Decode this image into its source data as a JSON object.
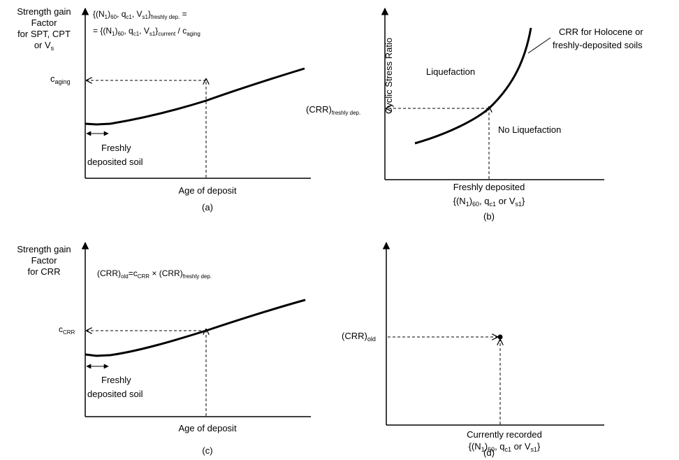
{
  "panel_a": {
    "ylabel": [
      "Strength gain",
      "Factor",
      "for SPT, CPT",
      "or V"
    ],
    "ylabel_sub": "s",
    "eq1": {
      "a": "{(N",
      "b": "1",
      "c": ")",
      "d": "60",
      "e": ", q",
      "f": "c1",
      "g": ", V",
      "h": "s1",
      "i": "}",
      "j": "freshly dep.",
      "k": " ="
    },
    "eq2": {
      "a": "= {(N",
      "b": "1",
      "c": ")",
      "d": "60",
      "e": ", q",
      "f": "c1",
      "g": ", V",
      "h": "s1",
      "i": "}",
      "j": "current",
      "k": " / c",
      "l": "aging"
    },
    "ytick": {
      "main": "c",
      "sub": "aging"
    },
    "annot": [
      "Freshly",
      "deposited soil"
    ],
    "xlabel": "Age of deposit",
    "caption": "(a)"
  },
  "panel_b": {
    "ylabel": "Cyclic Stress Ratio",
    "region_above": "Liquefaction",
    "region_below": "No Liquefaction",
    "curve_label": [
      "CRR for Holocene or",
      "freshly-deposited soils"
    ],
    "ytick": {
      "main": "(CRR)",
      "sub": "freshly dep."
    },
    "xlabel1": "Freshly deposited",
    "xlabel2": {
      "a": "{(N",
      "b": "1",
      "c": ")",
      "d": "60",
      "e": ", q",
      "f": "c1",
      "g": " or V",
      "h": "s1",
      "i": "}"
    },
    "caption": "(b)"
  },
  "panel_c": {
    "ylabel": [
      "Strength gain",
      "Factor",
      "for CRR"
    ],
    "eq": {
      "a": "(CRR)",
      "b": "old",
      "c": "=c",
      "d": "CRR",
      "e": " × (CRR)",
      "f": "freshly dep."
    },
    "ytick": {
      "main": "c",
      "sub": "CRR"
    },
    "annot": [
      "Freshly",
      "deposited soil"
    ],
    "xlabel": "Age of deposit",
    "caption": "(c)"
  },
  "panel_d": {
    "ytick": {
      "main": "(CRR)",
      "sub": "old"
    },
    "xlabel1": "Currently recorded",
    "xlabel2": {
      "a": "{(N",
      "b": "1",
      "c": ")",
      "d": "60",
      "e": ", q",
      "f": "c1",
      "g": " or V",
      "h": "s1",
      "i": "}"
    },
    "caption": "(d)"
  }
}
